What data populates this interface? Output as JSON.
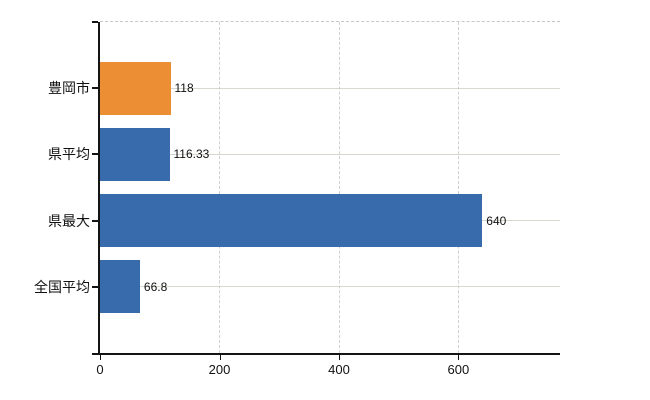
{
  "chart_data": {
    "type": "bar",
    "orientation": "horizontal",
    "title": "",
    "xlabel": "",
    "ylabel": "",
    "categories": [
      "豊岡市",
      "県平均",
      "県最大",
      "全国平均"
    ],
    "values": [
      118,
      116.33,
      640,
      66.8
    ],
    "value_labels": [
      "118",
      "116.33",
      "640",
      "66.8"
    ],
    "point_colors": [
      "#ec8e33",
      "#376bac",
      "#376bac",
      "#376bac"
    ],
    "x_ticks": [
      0,
      200,
      400,
      600
    ],
    "x_tick_labels": [
      "0",
      "200",
      "400",
      "600"
    ],
    "xlim": [
      0,
      770
    ],
    "grid": true,
    "legend": false,
    "gridline_vertical_style": "dashed",
    "gridline_horizontal_style": "solid"
  },
  "colors": {
    "background": "#ffffff",
    "axis": "#141414",
    "text": "#111111",
    "highlight_bar": "#ec8e33",
    "default_bar": "#376bac",
    "grid_horizontal": "#d5dacf",
    "grid_vertical": "#d2ced4",
    "top_border": "#c9c5cc"
  }
}
